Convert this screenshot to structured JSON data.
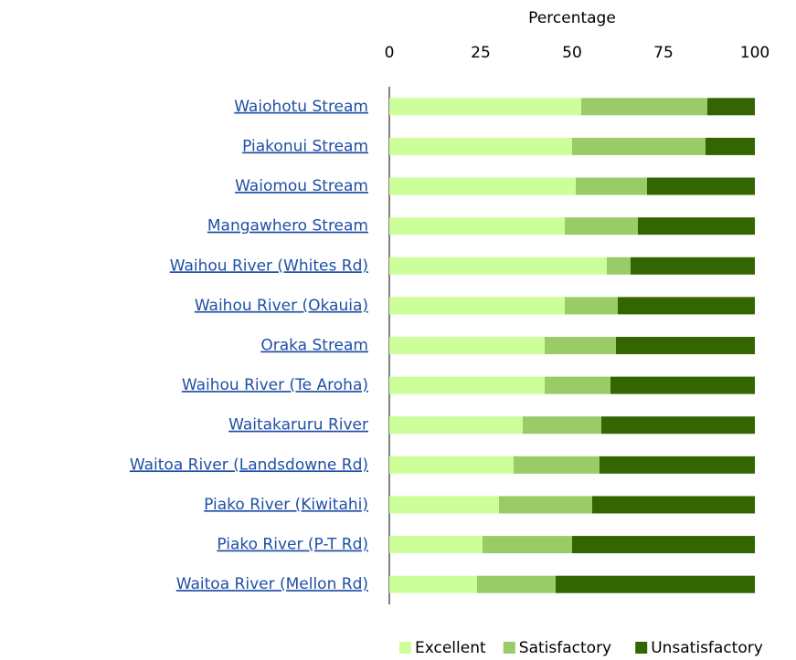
{
  "chart_data": {
    "type": "stacked-bar-horizontal",
    "x_label": "Percentage",
    "categories": [
      "Waiohotu Stream",
      "Piakonui Stream",
      "Waiomou Stream",
      "Mangawhero Stream",
      "Waihou River (Whites Rd)",
      "Waihou River (Okauia)",
      "Oraka Stream",
      "Waihou River (Te Aroha)",
      "Waitakaruru River",
      "Waitoa River (Landsdowne Rd)",
      "Piako River (Kiwitahi)",
      "Piako River (P-T Rd)",
      "Waitoa River (Mellon Rd)"
    ],
    "series": [
      {
        "name": "Excellent",
        "color": "#ccff99",
        "values": [
          52.5,
          50,
          51,
          48,
          59.5,
          48,
          42.5,
          42.5,
          36.5,
          34,
          30,
          25.5,
          24
        ]
      },
      {
        "name": "Satisfactory",
        "color": "#99cc66",
        "values": [
          34.5,
          36.5,
          19.5,
          20,
          6.5,
          14.5,
          19.5,
          18,
          21.5,
          23.5,
          25.5,
          24.5,
          21.5
        ]
      },
      {
        "name": "Unsatisfactory",
        "color": "#336600",
        "values": [
          13,
          13.5,
          29.5,
          32,
          34,
          37.5,
          38,
          39.5,
          42,
          42.5,
          44.5,
          50,
          54.5
        ]
      }
    ],
    "xlim": [
      0,
      100
    ],
    "xticks": [
      0,
      25,
      50,
      75,
      100
    ],
    "grid": false,
    "legend": "bottom-right"
  }
}
